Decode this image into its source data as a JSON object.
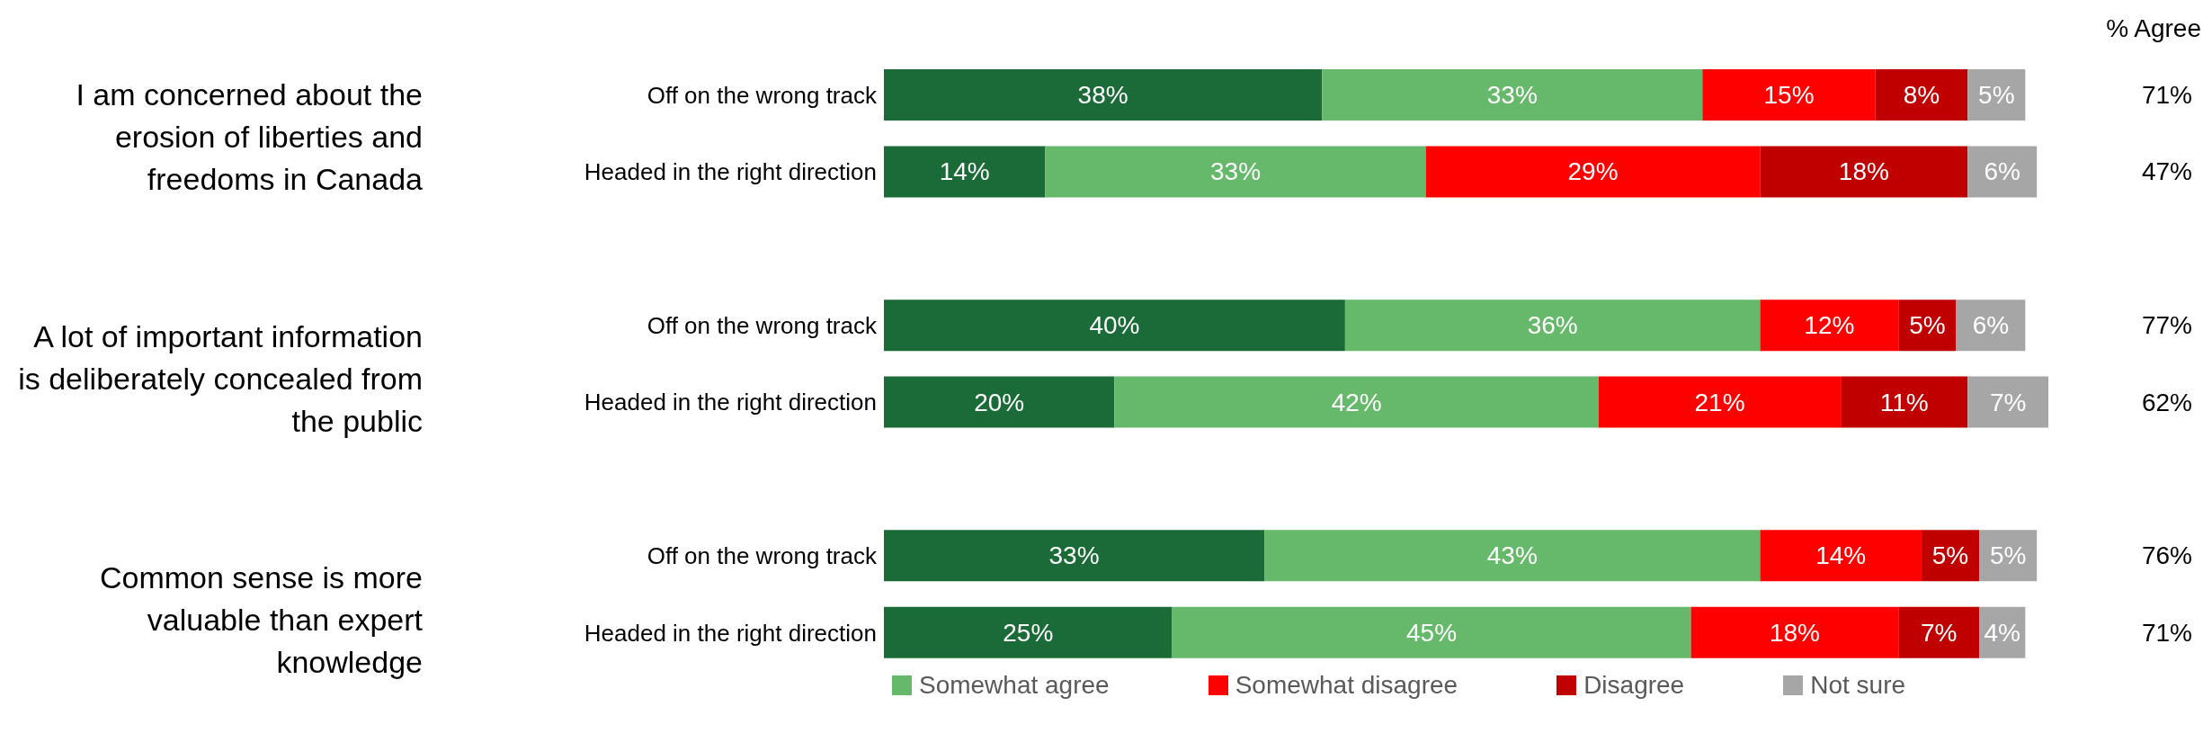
{
  "chart_data": {
    "type": "bar",
    "orientation": "horizontal",
    "stacked": true,
    "legend": "bottom",
    "xlim": [
      0,
      101
    ],
    "categories": [
      "Off on the wrong track",
      "Headed in the right direction",
      null,
      "Off on the wrong track",
      "Headed in the right direction",
      null,
      "Off on the wrong track",
      "Headed in the right direction"
    ],
    "series": [
      {
        "color": "#1b6b38",
        "values": [
          38,
          14,
          null,
          40,
          20,
          null,
          33,
          25
        ],
        "value_labels": [
          "38%",
          "14%",
          null,
          "40%",
          "20%",
          null,
          "33%",
          "25%"
        ]
      },
      {
        "name": "Somewhat agree",
        "color": "#66b86a",
        "values": [
          33,
          33,
          null,
          36,
          42,
          null,
          43,
          45
        ],
        "value_labels": [
          "33%",
          "33%",
          null,
          "36%",
          "42%",
          null,
          "43%",
          "45%"
        ]
      },
      {
        "name": "Somewhat disagree",
        "color": "#ff0000",
        "values": [
          15,
          29,
          null,
          12,
          21,
          null,
          14,
          18
        ],
        "value_labels": [
          "15%",
          "29%",
          null,
          "12%",
          "21%",
          null,
          "14%",
          "18%"
        ]
      },
      {
        "name": "Disagree",
        "color": "#c00000",
        "values": [
          8,
          18,
          null,
          5,
          11,
          null,
          5,
          7
        ],
        "value_labels": [
          "8%",
          "18%",
          null,
          "5%",
          "11%",
          null,
          "5%",
          "7%"
        ]
      },
      {
        "name": "Not sure",
        "color": "#a6a6a6",
        "values": [
          5,
          6,
          null,
          6,
          7,
          null,
          5,
          4
        ],
        "value_labels": [
          "5%",
          "6%",
          null,
          "6%",
          "7%",
          null,
          "5%",
          "4%"
        ]
      }
    ],
    "annotations": [
      "% Agree",
      "I am concerned about the erosion of liberties and freedoms in Canada",
      "A lot of important information is deliberately concealed from the public",
      "Common sense is more valuable than expert knowledge",
      "71%",
      "47%",
      "77%",
      "62%",
      "76%",
      "71%"
    ]
  }
}
